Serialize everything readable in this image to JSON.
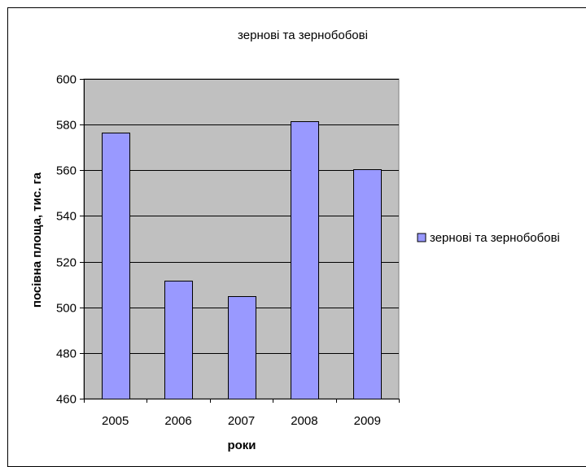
{
  "chart_data": {
    "type": "bar",
    "title": "зернові та зернобобові",
    "xlabel": "роки",
    "ylabel": "посівна площа, тис. га",
    "categories": [
      "2005",
      "2006",
      "2007",
      "2008",
      "2009"
    ],
    "series": [
      {
        "name": "зернові та зернобобові",
        "values": [
          576.5,
          511.5,
          505,
          581.5,
          560.5
        ],
        "color": "#9999ff"
      }
    ],
    "ylim": [
      460,
      600
    ],
    "yticks": [
      "460",
      "480",
      "500",
      "520",
      "540",
      "560",
      "580",
      "600"
    ],
    "grid": true,
    "plot_background": "#c0c0c0",
    "legend_position": "right"
  }
}
